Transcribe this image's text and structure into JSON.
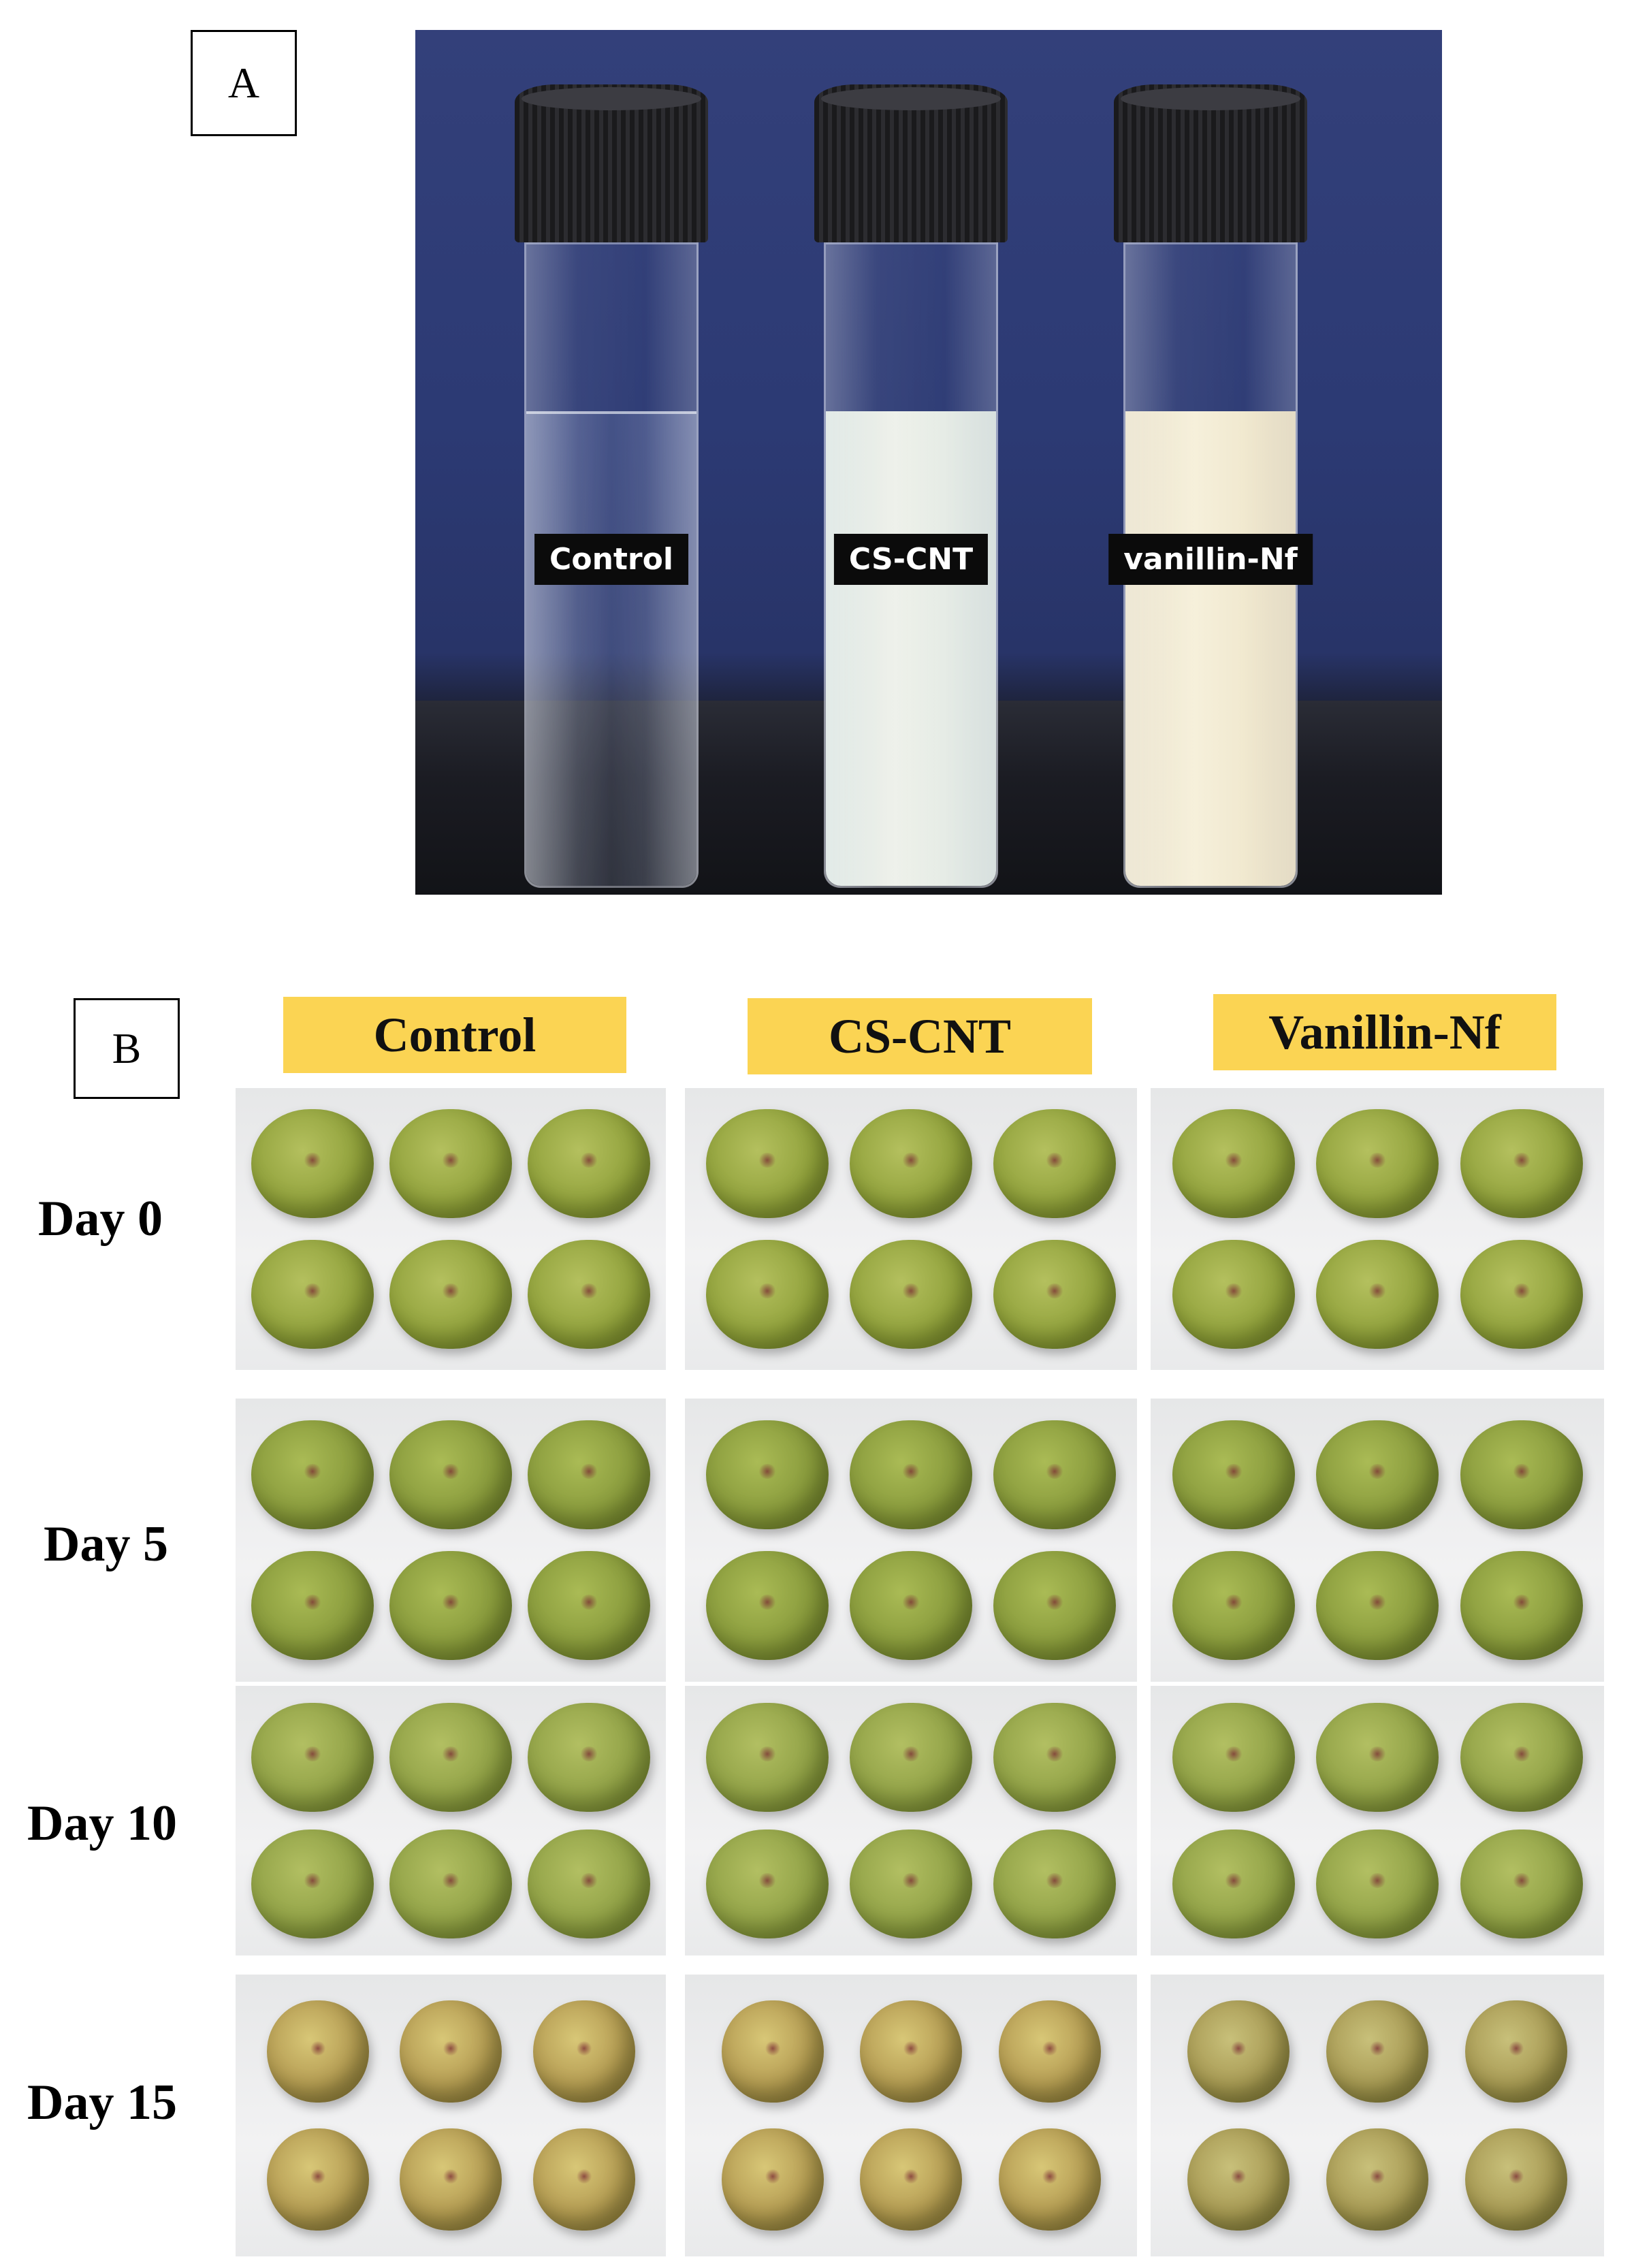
{
  "panel_a": {
    "tag": "A",
    "vials": [
      {
        "label": "Control"
      },
      {
        "label": "CS-CNT"
      },
      {
        "label": "vanillin-Nf"
      }
    ]
  },
  "panel_b": {
    "tag": "B",
    "columns": [
      "Control",
      "CS-CNT",
      "Vanillin-Nf"
    ],
    "rows": [
      "Day 0",
      "Day 5",
      "Day 10",
      "Day 15"
    ]
  },
  "colors": {
    "header_highlight": "#fbd453",
    "background_blue": "#2c3a74"
  }
}
